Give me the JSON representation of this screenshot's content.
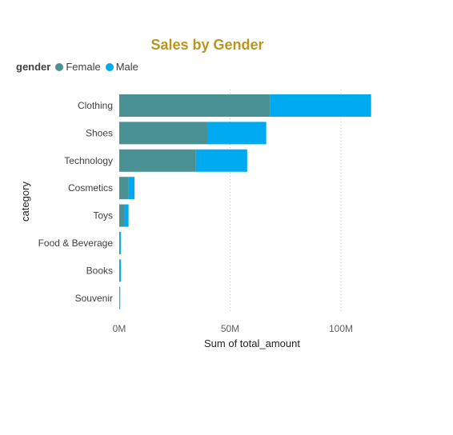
{
  "chart_data": {
    "type": "bar",
    "orientation": "horizontal",
    "stacked": true,
    "title": "Sales by Gender",
    "legend_title": "gender",
    "legend_position": "top-left",
    "xlabel": "Sum of total_amount",
    "ylabel": "category",
    "xlim": [
      0,
      120000000
    ],
    "xticks": [
      0,
      50000000,
      100000000
    ],
    "xtick_labels": [
      "0M",
      "50M",
      "100M"
    ],
    "grid": "vertical dotted",
    "categories": [
      "Clothing",
      "Shoes",
      "Technology",
      "Cosmetics",
      "Toys",
      "Food & Beverage",
      "Books",
      "Souvenir"
    ],
    "series": [
      {
        "name": "Female",
        "color": "#4a9194",
        "values": [
          68000000,
          39700000,
          34600000,
          4200000,
          2500000,
          400000,
          400000,
          250000
        ]
      },
      {
        "name": "Male",
        "color": "#00aaf0",
        "values": [
          45600000,
          26600000,
          23100000,
          2700000,
          1700000,
          400000,
          400000,
          200000
        ]
      }
    ]
  }
}
